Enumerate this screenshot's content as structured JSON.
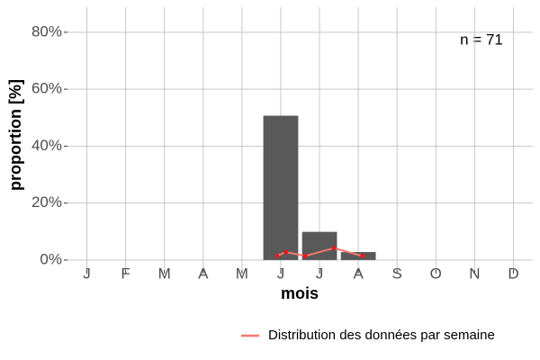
{
  "chart_data": {
    "type": "bar",
    "annotation": "n = 71",
    "x_label": "mois",
    "y_label": "proportion [%]",
    "categories": [
      "J",
      "F",
      "M",
      "A",
      "M",
      "J",
      "J",
      "A",
      "S",
      "O",
      "N",
      "D"
    ],
    "values": [
      0,
      0,
      0,
      0,
      0,
      50.7,
      9.9,
      2.8,
      0,
      0,
      0,
      0
    ],
    "color": "#595959",
    "ylim": [
      -3.5,
      88.8
    ],
    "yticks": [
      {
        "value": 0,
        "label": "0%"
      },
      {
        "value": 20,
        "label": "20%"
      },
      {
        "value": 40,
        "label": "40%"
      },
      {
        "value": 60,
        "label": "60%"
      },
      {
        "value": 80,
        "label": "80%"
      }
    ],
    "grid": true,
    "legend": "bottom-right",
    "line": {
      "type": "line",
      "name": "Distribution des données par semaine",
      "color": "#f8766d",
      "x": [
        4.9,
        5.13,
        5.63,
        6.37,
        7.11
      ],
      "values": [
        1.4,
        2.8,
        1.4,
        4.2,
        1.4
      ]
    }
  }
}
